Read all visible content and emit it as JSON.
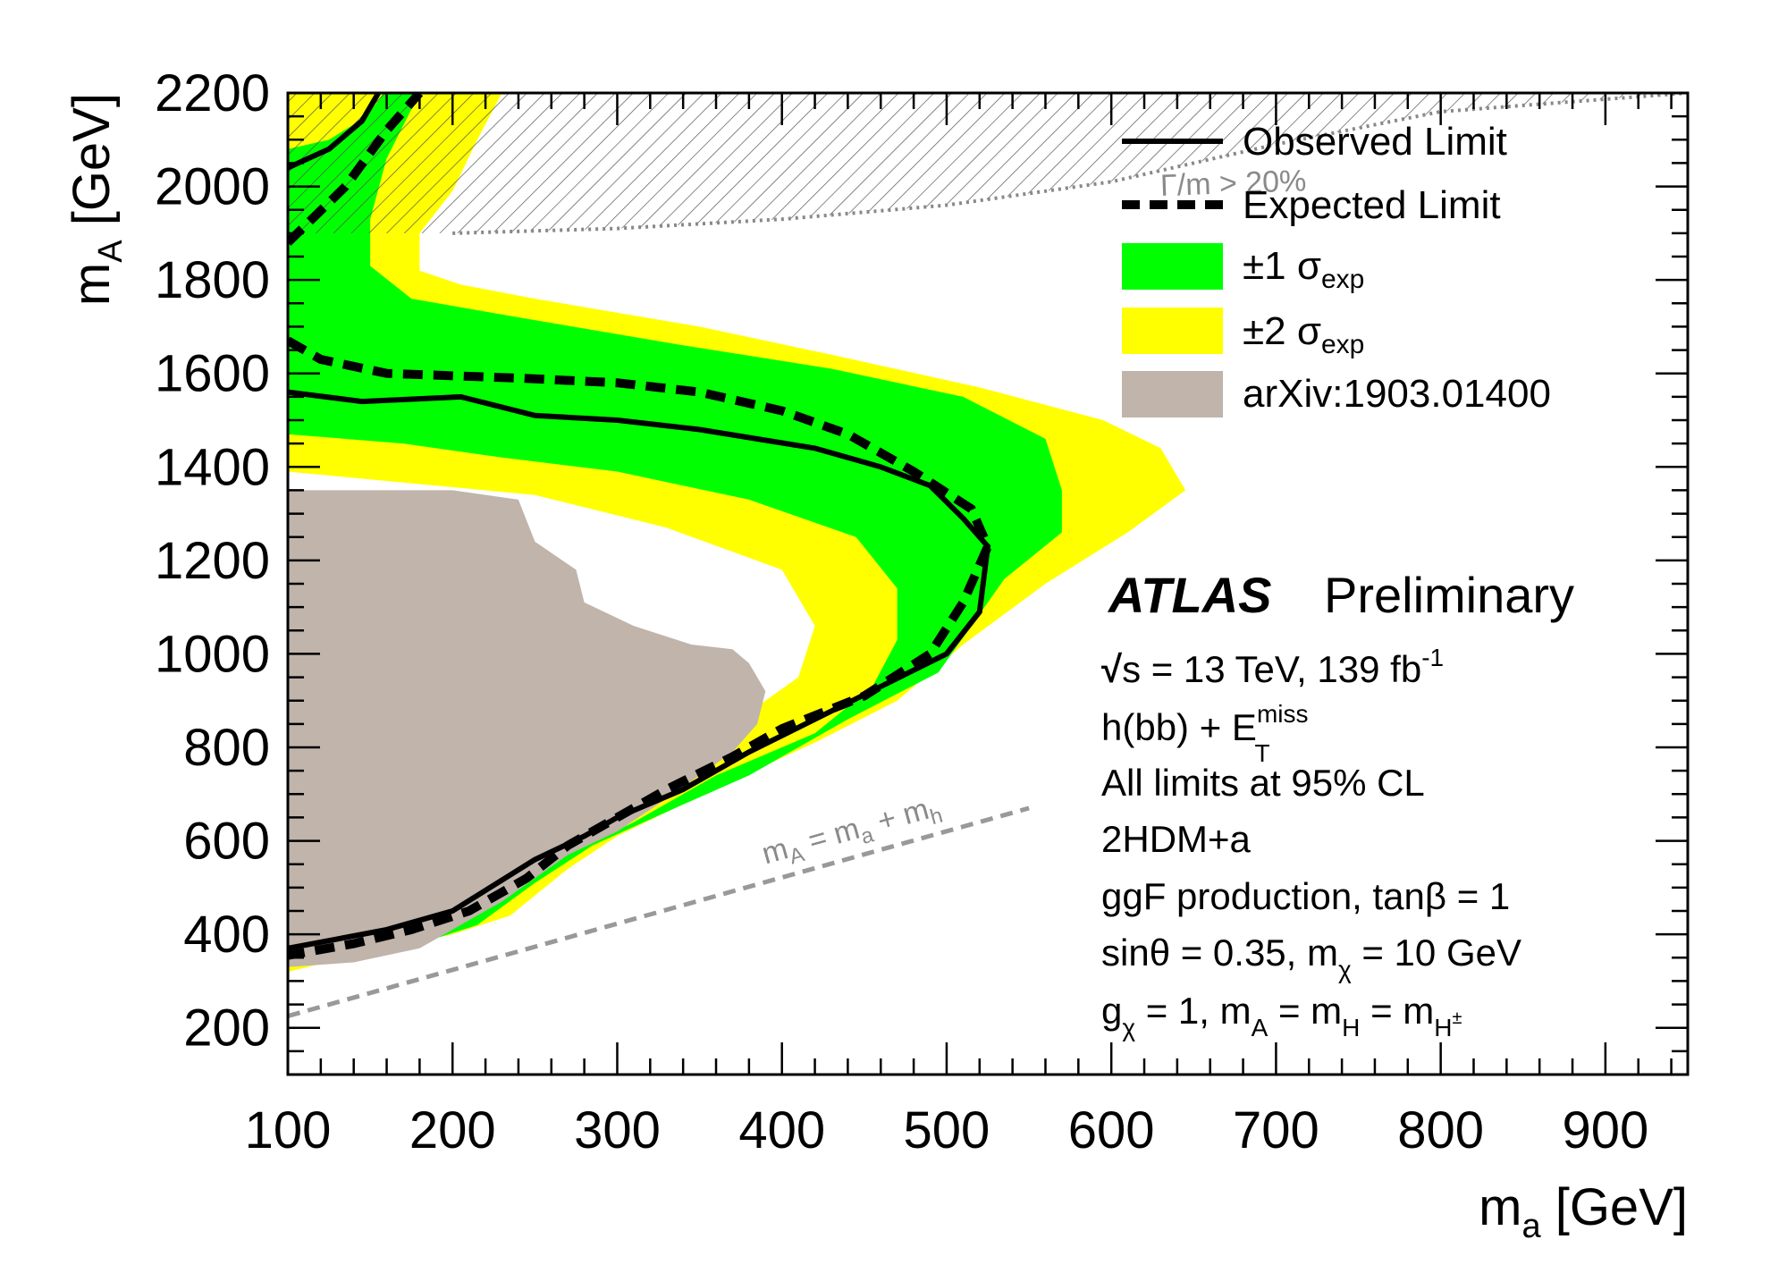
{
  "chart_data": {
    "type": "line",
    "title": "",
    "xlabel": "m_a [GeV]",
    "ylabel": "m_A [GeV]",
    "xlim": [
      100,
      950
    ],
    "ylim": [
      100,
      2200
    ],
    "x_ticks": [
      100,
      200,
      300,
      400,
      500,
      600,
      700,
      800,
      900
    ],
    "y_ticks": [
      200,
      400,
      600,
      800,
      1000,
      1200,
      1400,
      1600,
      1800,
      2000,
      2200
    ],
    "x_tick_labels": [
      "100",
      "200",
      "300",
      "400",
      "500",
      "600",
      "700",
      "800",
      "900"
    ],
    "y_tick_labels": [
      "200",
      "400",
      "600",
      "800",
      "1000",
      "1200",
      "1400",
      "1600",
      "1800",
      "2000",
      "2200"
    ],
    "legend_position": "top-right",
    "legend": [
      {
        "key": "observed",
        "label": "Observed Limit",
        "style": "solid-line",
        "color": "#000000"
      },
      {
        "key": "expected",
        "label": "Expected Limit",
        "style": "dashed-line",
        "color": "#000000"
      },
      {
        "key": "band1",
        "label_pre": "±1 σ",
        "label_sub": "exp",
        "style": "fill",
        "color": "#00ff00"
      },
      {
        "key": "band2",
        "label_pre": "±2 σ",
        "label_sub": "exp",
        "style": "fill",
        "color": "#ffff00"
      },
      {
        "key": "previous",
        "label": "arXiv:1903.01400",
        "style": "fill",
        "color": "#c0b4ab"
      }
    ],
    "colors": {
      "band1": "#00ff00",
      "band2": "#ffff00",
      "previous": "#c0b4ab",
      "annotation": "#8a8a8a"
    },
    "series": [
      {
        "key": "band2",
        "type": "area",
        "points": [
          [
            100,
            2200
          ],
          [
            230,
            2200
          ],
          [
            215,
            2100
          ],
          [
            200,
            1990
          ],
          [
            180,
            1900
          ],
          [
            180,
            1820
          ],
          [
            205,
            1790
          ],
          [
            250,
            1760
          ],
          [
            350,
            1700
          ],
          [
            430,
            1640
          ],
          [
            520,
            1570
          ],
          [
            595,
            1500
          ],
          [
            630,
            1440
          ],
          [
            645,
            1350
          ],
          [
            610,
            1260
          ],
          [
            560,
            1150
          ],
          [
            510,
            1020
          ],
          [
            470,
            900
          ],
          [
            420,
            810
          ],
          [
            370,
            730
          ],
          [
            300,
            610
          ],
          [
            270,
            540
          ],
          [
            235,
            440
          ],
          [
            200,
            400
          ],
          [
            160,
            370
          ],
          [
            100,
            320
          ],
          [
            100,
            370
          ],
          [
            150,
            380
          ],
          [
            180,
            410
          ],
          [
            220,
            470
          ],
          [
            250,
            560
          ],
          [
            280,
            680
          ],
          [
            320,
            760
          ],
          [
            370,
            850
          ],
          [
            410,
            950
          ],
          [
            420,
            1060
          ],
          [
            400,
            1180
          ],
          [
            330,
            1270
          ],
          [
            250,
            1340
          ],
          [
            160,
            1370
          ],
          [
            100,
            1390
          ]
        ]
      },
      {
        "key": "band1",
        "type": "area",
        "points": [
          [
            100,
            2080
          ],
          [
            125,
            2100
          ],
          [
            148,
            2150
          ],
          [
            158,
            2200
          ],
          [
            180,
            2200
          ],
          [
            160,
            2060
          ],
          [
            150,
            1930
          ],
          [
            150,
            1830
          ],
          [
            175,
            1760
          ],
          [
            240,
            1720
          ],
          [
            340,
            1660
          ],
          [
            430,
            1610
          ],
          [
            510,
            1550
          ],
          [
            560,
            1460
          ],
          [
            570,
            1350
          ],
          [
            570,
            1260
          ],
          [
            535,
            1160
          ],
          [
            515,
            1060
          ],
          [
            495,
            960
          ],
          [
            440,
            860
          ],
          [
            380,
            740
          ],
          [
            335,
            670
          ],
          [
            285,
            590
          ],
          [
            250,
            510
          ],
          [
            215,
            420
          ],
          [
            180,
            380
          ],
          [
            140,
            350
          ],
          [
            100,
            340
          ],
          [
            100,
            350
          ],
          [
            150,
            360
          ],
          [
            190,
            400
          ],
          [
            235,
            490
          ],
          [
            270,
            570
          ],
          [
            310,
            640
          ],
          [
            360,
            740
          ],
          [
            420,
            830
          ],
          [
            455,
            930
          ],
          [
            470,
            1030
          ],
          [
            470,
            1140
          ],
          [
            445,
            1250
          ],
          [
            380,
            1330
          ],
          [
            300,
            1390
          ],
          [
            230,
            1420
          ],
          [
            170,
            1450
          ],
          [
            100,
            1470
          ]
        ]
      },
      {
        "key": "previous",
        "type": "area",
        "points": [
          [
            100,
            330
          ],
          [
            140,
            340
          ],
          [
            180,
            370
          ],
          [
            230,
            470
          ],
          [
            270,
            570
          ],
          [
            300,
            620
          ],
          [
            330,
            690
          ],
          [
            350,
            740
          ],
          [
            370,
            790
          ],
          [
            385,
            850
          ],
          [
            390,
            920
          ],
          [
            380,
            980
          ],
          [
            370,
            1010
          ],
          [
            345,
            1020
          ],
          [
            310,
            1060
          ],
          [
            280,
            1110
          ],
          [
            275,
            1180
          ],
          [
            250,
            1240
          ],
          [
            240,
            1330
          ],
          [
            200,
            1350
          ],
          [
            100,
            1350
          ]
        ]
      },
      {
        "key": "width-region",
        "type": "area",
        "points": [
          [
            100,
            2200
          ],
          [
            950,
            2200
          ],
          [
            800,
            2160
          ],
          [
            700,
            2090
          ],
          [
            600,
            2010
          ],
          [
            500,
            1960
          ],
          [
            400,
            1930
          ],
          [
            300,
            1910
          ],
          [
            200,
            1900
          ],
          [
            100,
            1900
          ]
        ]
      },
      {
        "key": "observed",
        "type": "line",
        "points": [
          [
            100,
            2040
          ],
          [
            125,
            2080
          ],
          [
            145,
            2140
          ],
          [
            155,
            2200
          ],
          null,
          [
            100,
            1560
          ],
          [
            145,
            1540
          ],
          [
            205,
            1550
          ],
          [
            250,
            1510
          ],
          [
            300,
            1500
          ],
          [
            350,
            1480
          ],
          [
            420,
            1440
          ],
          [
            460,
            1400
          ],
          [
            490,
            1360
          ],
          [
            510,
            1290
          ],
          [
            525,
            1230
          ],
          [
            520,
            1090
          ],
          [
            500,
            1000
          ],
          [
            460,
            930
          ],
          [
            420,
            860
          ],
          [
            380,
            790
          ],
          [
            340,
            710
          ],
          [
            300,
            650
          ],
          [
            280,
            610
          ],
          [
            250,
            560
          ],
          [
            200,
            450
          ],
          [
            160,
            410
          ],
          [
            130,
            390
          ],
          [
            100,
            370
          ]
        ]
      },
      {
        "key": "expected",
        "type": "line",
        "points": [
          [
            100,
            1880
          ],
          [
            135,
            2000
          ],
          [
            160,
            2120
          ],
          [
            180,
            2200
          ],
          null,
          [
            100,
            1670
          ],
          [
            120,
            1630
          ],
          [
            160,
            1600
          ],
          [
            240,
            1590
          ],
          [
            300,
            1580
          ],
          [
            350,
            1560
          ],
          [
            400,
            1520
          ],
          [
            440,
            1470
          ],
          [
            480,
            1390
          ],
          [
            515,
            1310
          ],
          [
            525,
            1230
          ],
          [
            510,
            1110
          ],
          [
            490,
            1000
          ],
          [
            450,
            910
          ],
          [
            400,
            840
          ],
          [
            370,
            780
          ],
          [
            330,
            710
          ],
          [
            300,
            650
          ],
          [
            270,
            590
          ],
          [
            245,
            520
          ],
          [
            210,
            450
          ],
          [
            175,
            410
          ],
          [
            140,
            380
          ],
          [
            100,
            355
          ]
        ]
      },
      {
        "key": "kinematic-limit",
        "type": "line",
        "points": [
          [
            100,
            225
          ],
          [
            550,
            670
          ]
        ]
      },
      {
        "key": "width-boundary",
        "type": "line",
        "points": [
          [
            200,
            1900
          ],
          [
            300,
            1910
          ],
          [
            400,
            1930
          ],
          [
            500,
            1960
          ],
          [
            600,
            2010
          ],
          [
            700,
            2090
          ],
          [
            800,
            2160
          ],
          [
            950,
            2200
          ]
        ]
      }
    ],
    "annotations": [
      {
        "key": "width",
        "text": "Γ/m > 20%",
        "x": 630,
        "y": 1980
      },
      {
        "key": "kinematic",
        "parts": [
          "m",
          "A",
          " = m",
          "a",
          " + m",
          "h"
        ],
        "x": 390,
        "y": 550
      }
    ]
  },
  "info_box": {
    "experiment": "ATLAS",
    "status": "Preliminary",
    "energy_line": [
      "√",
      "s = 13 TeV, 139 fb",
      "-1"
    ],
    "channel_line": [
      "h(bb) + E",
      "miss",
      "T"
    ],
    "cl_line": "All limits at 95% CL",
    "model_line": "2HDM+a",
    "production_line": "ggF production, tanβ = 1",
    "mixing_line": [
      "sinθ = 0.35, m",
      "χ",
      " = 10 GeV"
    ],
    "coupling_line": [
      "g",
      "χ",
      " = 1, m",
      "A",
      " = m",
      "H",
      " = m",
      "H",
      "±"
    ]
  },
  "axis_titles": {
    "x": [
      "m",
      "a",
      " [GeV]"
    ],
    "y": [
      "m",
      "A",
      " [GeV]"
    ]
  }
}
